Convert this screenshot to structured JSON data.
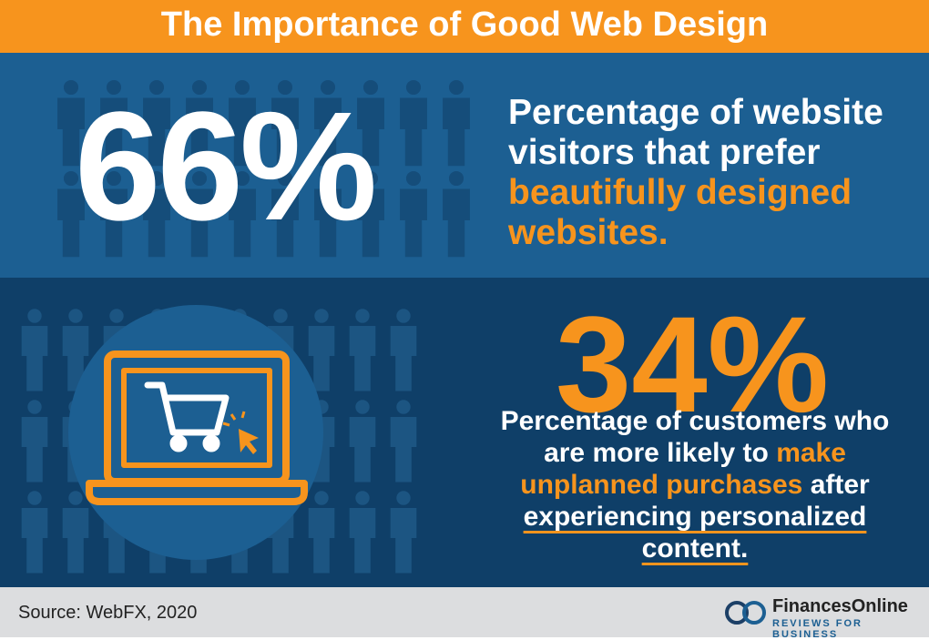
{
  "header": {
    "title": "The Importance of Good Web Design"
  },
  "stat1": {
    "number": "66%",
    "description": [
      {
        "text": "Percentage of website visitors that prefer ",
        "highlight": false
      },
      {
        "text": "beautifully designed websites.",
        "highlight": true
      }
    ]
  },
  "stat2": {
    "number": "34%",
    "description": [
      {
        "text": "Percentage of customers who are more likely to ",
        "highlight": false
      },
      {
        "text": "make unplanned purchases",
        "highlight": true
      },
      {
        "text": " after ",
        "highlight": false
      },
      {
        "text": "experiencing personalized content.",
        "highlight": false
      }
    ]
  },
  "footer": {
    "source": "Source: WebFX, 2020",
    "logo": {
      "name": "FinancesOnline",
      "tagline": "REVIEWS FOR BUSINESS"
    }
  }
}
